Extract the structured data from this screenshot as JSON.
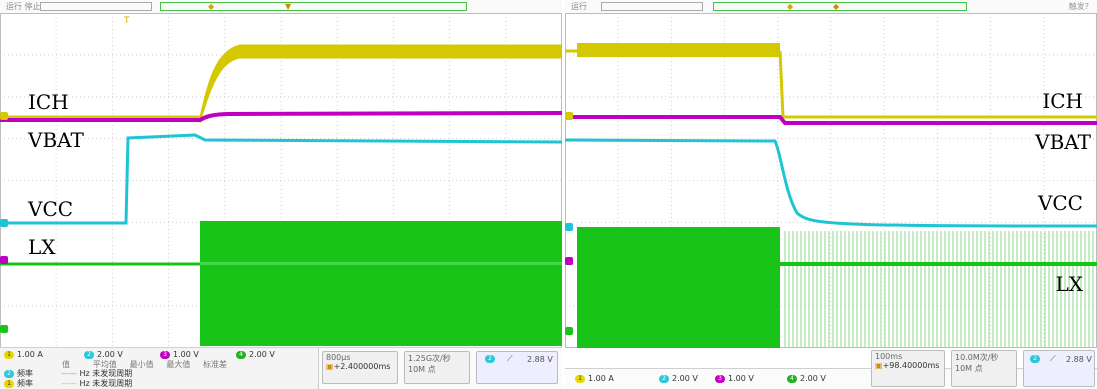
{
  "left": {
    "status": "运行 停止",
    "trigger_marker": "T",
    "channel_labels": {
      "ich": "ICH",
      "vbat": "VBAT",
      "vcc": "VCC",
      "lx": "LX"
    },
    "channels": [
      {
        "id": "1",
        "scale": "1.00 A"
      },
      {
        "id": "2",
        "scale": "2.00 V"
      },
      {
        "id": "3",
        "scale": "1.00 V"
      },
      {
        "id": "4",
        "scale": "2.00 V"
      }
    ],
    "measure": {
      "col_headers": [
        "值",
        "平均值",
        "最小值",
        "最大值",
        "标准差"
      ],
      "rows": [
        {
          "name": "频率",
          "unit": "Hz",
          "value": "未发现周期"
        },
        {
          "name": "频率",
          "unit": "Hz",
          "value": "未发现周期"
        }
      ]
    },
    "timebase": "800μs",
    "delay": "+2.400000ms",
    "sample_rate": "1.25G次/秒",
    "memory": "10M 点",
    "trigger_level": "2.88 V"
  },
  "right": {
    "status": "运行",
    "corner": "触发?",
    "channel_labels": {
      "ich": "ICH",
      "vbat": "VBAT",
      "vcc": "VCC",
      "lx": "LX"
    },
    "channels": [
      {
        "id": "1",
        "scale": "1.00 A"
      },
      {
        "id": "2",
        "scale": "2.00 V"
      },
      {
        "id": "3",
        "scale": "1.00 V"
      },
      {
        "id": "4",
        "scale": "2.00 V"
      }
    ],
    "timebase": "100ms",
    "delay": "+98.40000ms",
    "sample_rate": "10.0M次/秒",
    "memory": "10M 点",
    "trigger_level": "2.88 V"
  },
  "colors": {
    "ich": "#d4c800",
    "vbat": "#c000c0",
    "vcc": "#1fc4d4",
    "lx": "#18c418",
    "grid": "#cfcfcf"
  }
}
